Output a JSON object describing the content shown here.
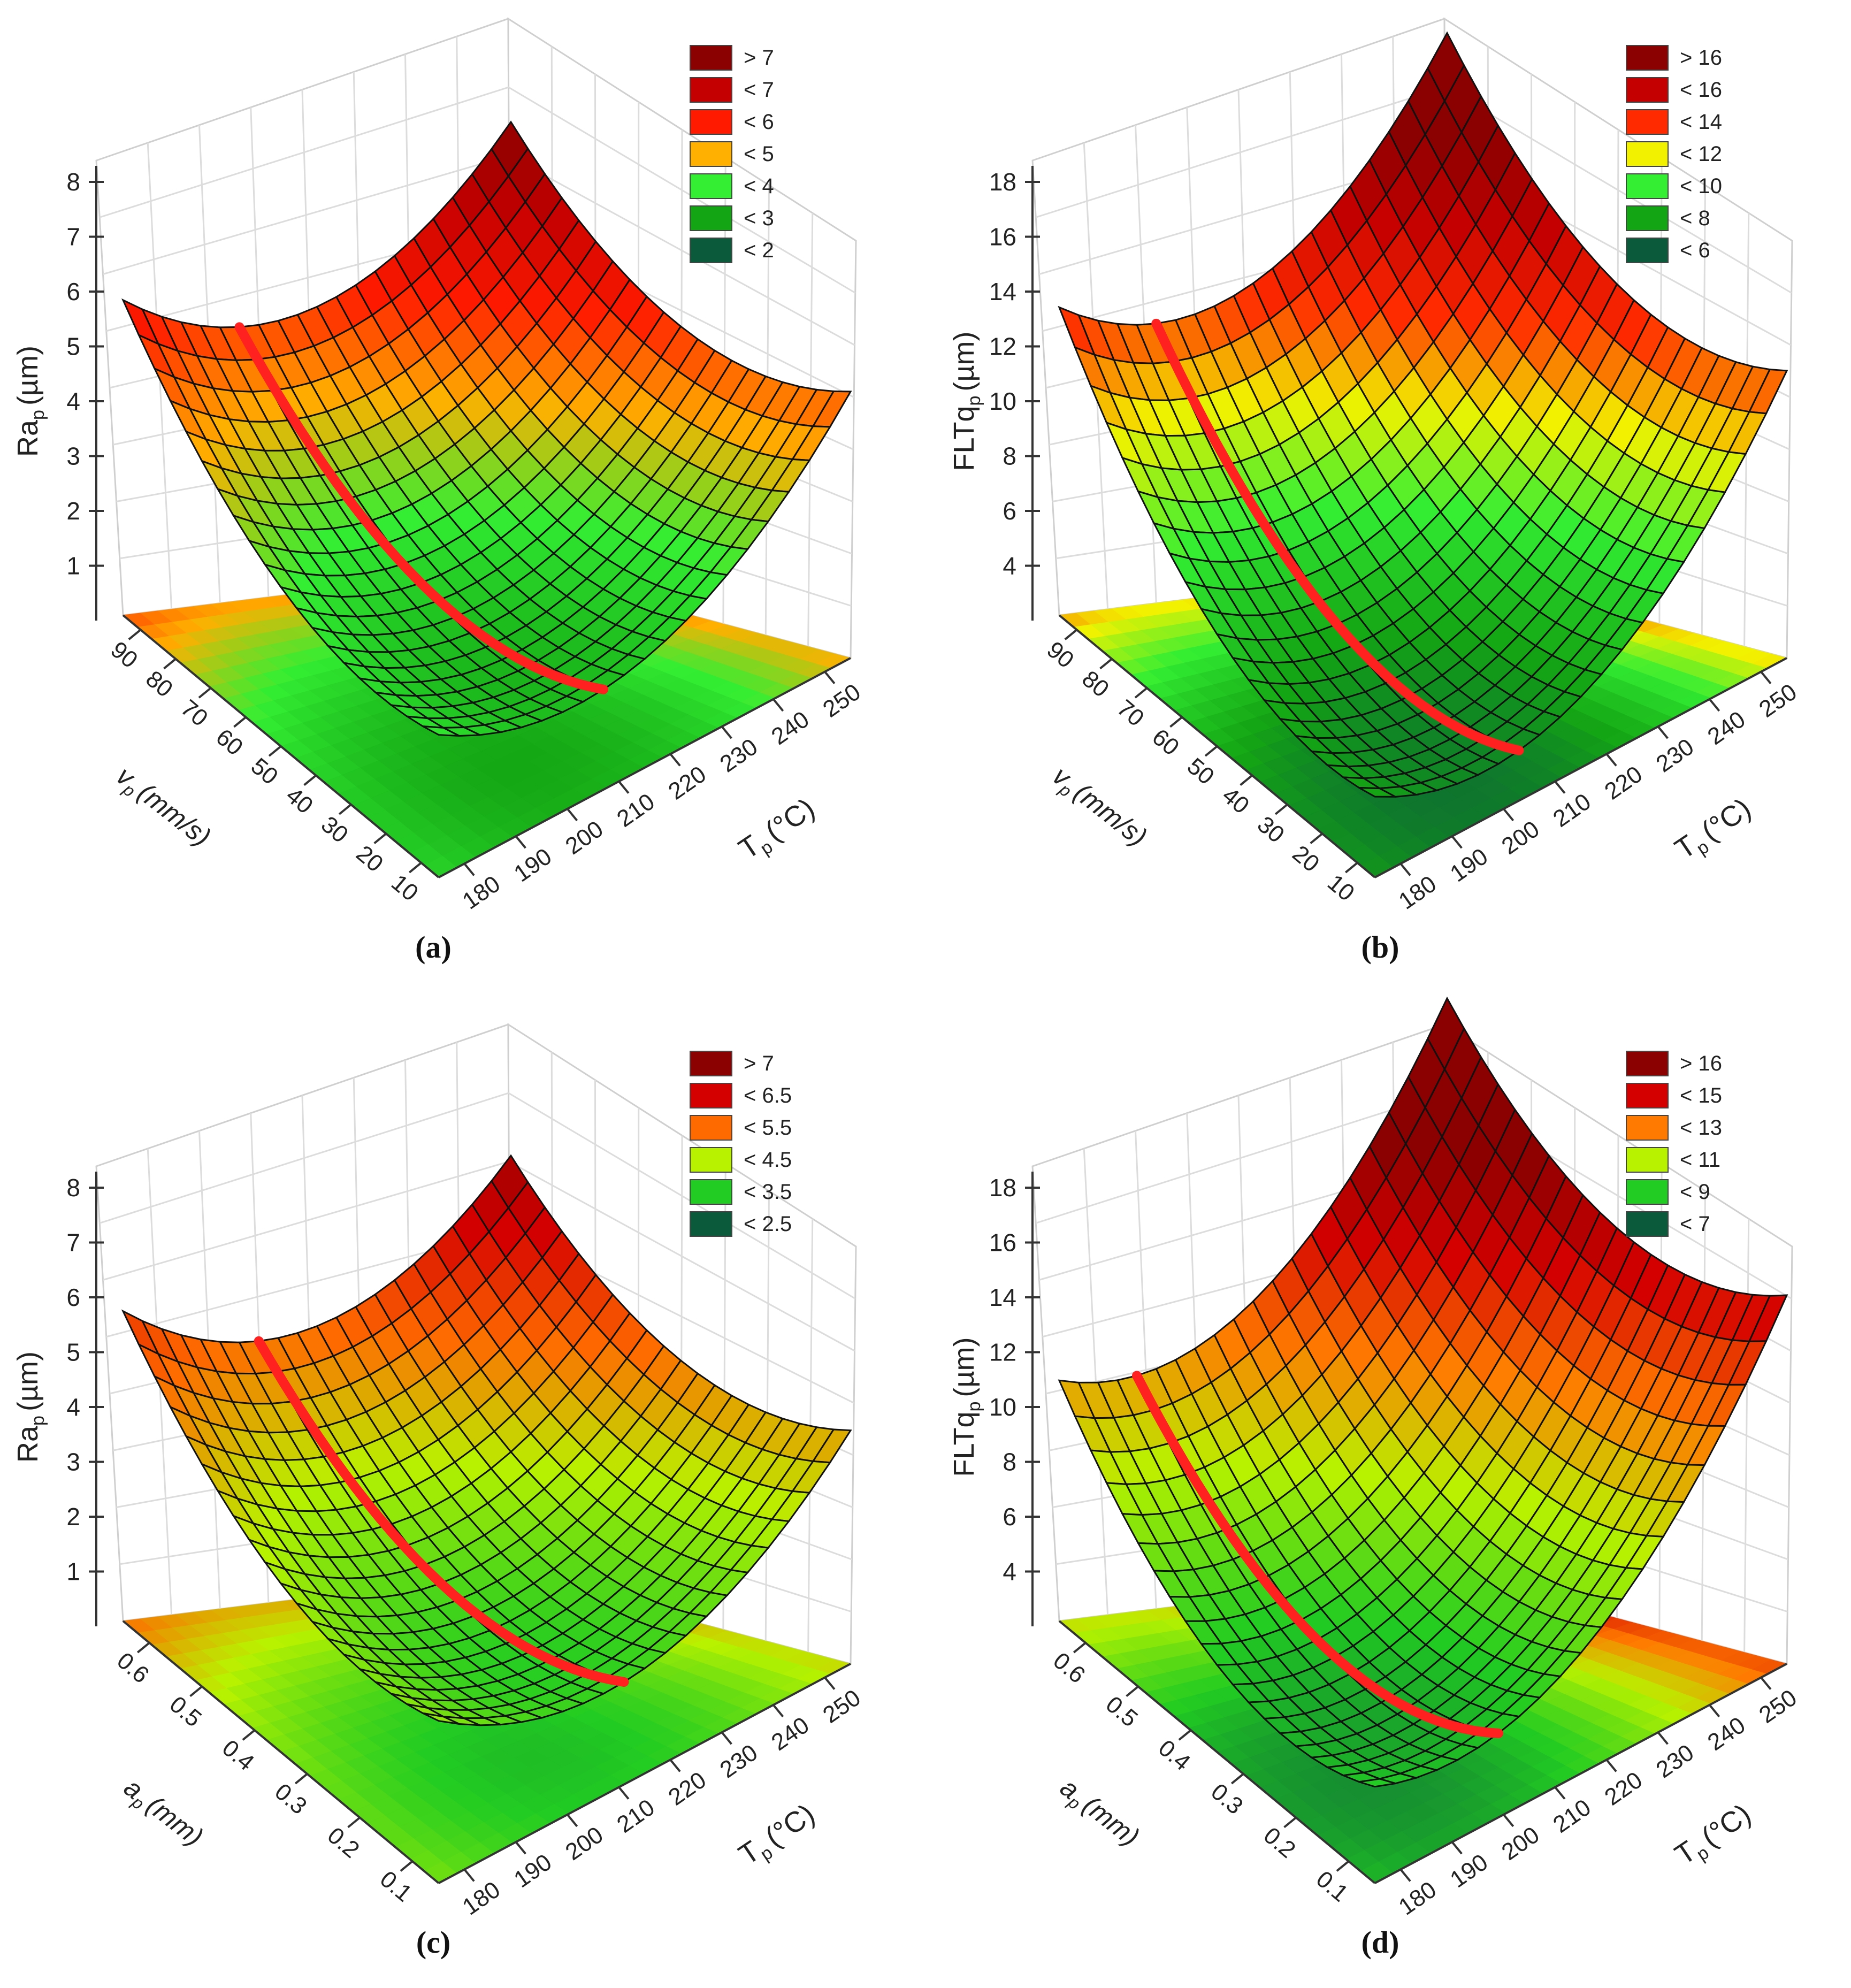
{
  "chart_data": [
    {
      "panel": "a",
      "caption": "(a)",
      "type": "surface",
      "z_label": "Ra_p (µm)",
      "z_label_main": "Ra",
      "z_label_sub": "p",
      "z_label_unit": "(µm)",
      "z_ticks": [
        "1",
        "2",
        "3",
        "4",
        "5",
        "6",
        "7",
        "8"
      ],
      "zlim": [
        0,
        8
      ],
      "left_axis_label": "v_p (mm/s)",
      "left_axis_main": "v",
      "left_axis_sub": "p",
      "left_axis_unit": "(mm/s)",
      "left_ticks": [
        "90",
        "80",
        "70",
        "60",
        "50",
        "40",
        "30",
        "20",
        "10"
      ],
      "left_range": [
        90,
        10
      ],
      "right_axis_label": "T_p (°C)",
      "right_axis_main": "T",
      "right_axis_sub": "p",
      "right_axis_unit": "(°C)",
      "right_ticks": [
        "180",
        "190",
        "200",
        "210",
        "220",
        "230",
        "240",
        "250"
      ],
      "right_range": [
        180,
        250
      ],
      "surface": {
        "corner_back": 6.1,
        "corner_left_front": 1.6,
        "corner_right_back": 6.6,
        "corner_near": 1.3,
        "min_at": [
          0.55,
          0.35
        ]
      },
      "optimum_curve": "red line along minimum",
      "legend": [
        {
          "label": "> 7",
          "color": "#8b0000"
        },
        {
          "label": "< 7",
          "color": "#c40000"
        },
        {
          "label": "< 6",
          "color": "#ff1a00"
        },
        {
          "label": "< 5",
          "color": "#ffb000"
        },
        {
          "label": "< 4",
          "color": "#33ee33"
        },
        {
          "label": "< 3",
          "color": "#14a514"
        },
        {
          "label": "< 2",
          "color": "#0b5a3c"
        }
      ]
    },
    {
      "panel": "b",
      "caption": "(b)",
      "type": "surface",
      "z_label": "FLTq_p (µm)",
      "z_label_main": "FLTq",
      "z_label_sub": "p",
      "z_label_unit": "(µm)",
      "z_ticks": [
        "4",
        "6",
        "8",
        "10",
        "12",
        "14",
        "16",
        "18"
      ],
      "zlim": [
        2,
        18
      ],
      "left_axis_label": "v_p (mm/s)",
      "left_axis_main": "v",
      "left_axis_sub": "p",
      "left_axis_unit": "(mm/s)",
      "left_ticks": [
        "90",
        "80",
        "70",
        "60",
        "50",
        "40",
        "30",
        "20",
        "10"
      ],
      "left_range": [
        90,
        10
      ],
      "right_axis_label": "T_p (°C)",
      "right_axis_main": "T",
      "right_axis_sub": "p",
      "right_axis_unit": "(°C)",
      "right_ticks": [
        "180",
        "190",
        "200",
        "210",
        "220",
        "230",
        "240",
        "250"
      ],
      "right_range": [
        180,
        250
      ],
      "surface": {
        "corner_back": 13.5,
        "corner_left_front": 4.5,
        "corner_right_back": 16.5,
        "corner_near": 2.8,
        "min_at": [
          0.6,
          0.3
        ]
      },
      "optimum_curve": "red line along minimum",
      "legend": [
        {
          "label": "> 16",
          "color": "#8b0000"
        },
        {
          "label": "< 16",
          "color": "#c40000"
        },
        {
          "label": "< 14",
          "color": "#ff2a00"
        },
        {
          "label": "< 12",
          "color": "#f2f200"
        },
        {
          "label": "< 10",
          "color": "#33ee33"
        },
        {
          "label": "< 8",
          "color": "#14a514"
        },
        {
          "label": "< 6",
          "color": "#0b5a3c"
        }
      ]
    },
    {
      "panel": "c",
      "caption": "(c)",
      "type": "surface",
      "z_label": "Ra_p (µm)",
      "z_label_main": "Ra",
      "z_label_sub": "p",
      "z_label_unit": "(µm)",
      "z_ticks": [
        "1",
        "2",
        "3",
        "4",
        "5",
        "6",
        "7",
        "8"
      ],
      "zlim": [
        0,
        8
      ],
      "left_axis_label": "a_p (mm)",
      "left_axis_main": "a",
      "left_axis_sub": "p",
      "left_axis_unit": "(mm)",
      "left_ticks": [
        "0.6",
        "0.5",
        "0.4",
        "0.3",
        "0.2",
        "0.1"
      ],
      "left_range": [
        0.6,
        0.1
      ],
      "right_axis_label": "T_p (°C)",
      "right_axis_main": "T",
      "right_axis_sub": "p",
      "right_axis_unit": "(°C)",
      "right_ticks": [
        "180",
        "190",
        "200",
        "210",
        "220",
        "230",
        "240",
        "250"
      ],
      "right_range": [
        180,
        250
      ],
      "surface": {
        "corner_back": 5.6,
        "corner_left_front": 1.5,
        "corner_right_back": 6.7,
        "corner_near": 1.6,
        "min_at": [
          0.55,
          0.4
        ]
      },
      "optimum_curve": "red line along minimum",
      "legend": [
        {
          "label": "> 7",
          "color": "#8b0000"
        },
        {
          "label": "< 6.5",
          "color": "#d40000"
        },
        {
          "label": "< 5.5",
          "color": "#ff6a00"
        },
        {
          "label": "< 4.5",
          "color": "#b9f200"
        },
        {
          "label": "< 3.5",
          "color": "#22cc22"
        },
        {
          "label": "< 2.5",
          "color": "#0b5a3c"
        }
      ]
    },
    {
      "panel": "d",
      "caption": "(d)",
      "type": "surface",
      "z_label": "FLTq_p (µm)",
      "z_label_main": "FLTq",
      "z_label_sub": "p",
      "z_label_unit": "(µm)",
      "z_ticks": [
        "4",
        "6",
        "8",
        "10",
        "12",
        "14",
        "16",
        "18"
      ],
      "zlim": [
        2,
        18
      ],
      "left_axis_label": "a_p (mm)",
      "left_axis_main": "a",
      "left_axis_sub": "p",
      "left_axis_unit": "(mm)",
      "left_ticks": [
        "0.6",
        "0.5",
        "0.4",
        "0.3",
        "0.2",
        "0.1"
      ],
      "left_range": [
        0.6,
        0.1
      ],
      "right_axis_label": "T_p (°C)",
      "right_axis_main": "T",
      "right_axis_sub": "p",
      "right_axis_unit": "(°C)",
      "right_ticks": [
        "180",
        "190",
        "200",
        "210",
        "220",
        "230",
        "240",
        "250"
      ],
      "right_range": [
        180,
        250
      ],
      "surface": {
        "corner_back": 11.2,
        "corner_left_front": 7.0,
        "corner_right_back": 18.5,
        "corner_near": 3.8,
        "min_at": [
          0.55,
          0.25
        ]
      },
      "optimum_curve": "red line along minimum",
      "legend": [
        {
          "label": "> 16",
          "color": "#8b0000"
        },
        {
          "label": "< 15",
          "color": "#d40000"
        },
        {
          "label": "< 13",
          "color": "#ff7a00"
        },
        {
          "label": "< 11",
          "color": "#b9f200"
        },
        {
          "label": "< 9",
          "color": "#22cc22"
        },
        {
          "label": "< 7",
          "color": "#0b5a3c"
        }
      ]
    }
  ]
}
